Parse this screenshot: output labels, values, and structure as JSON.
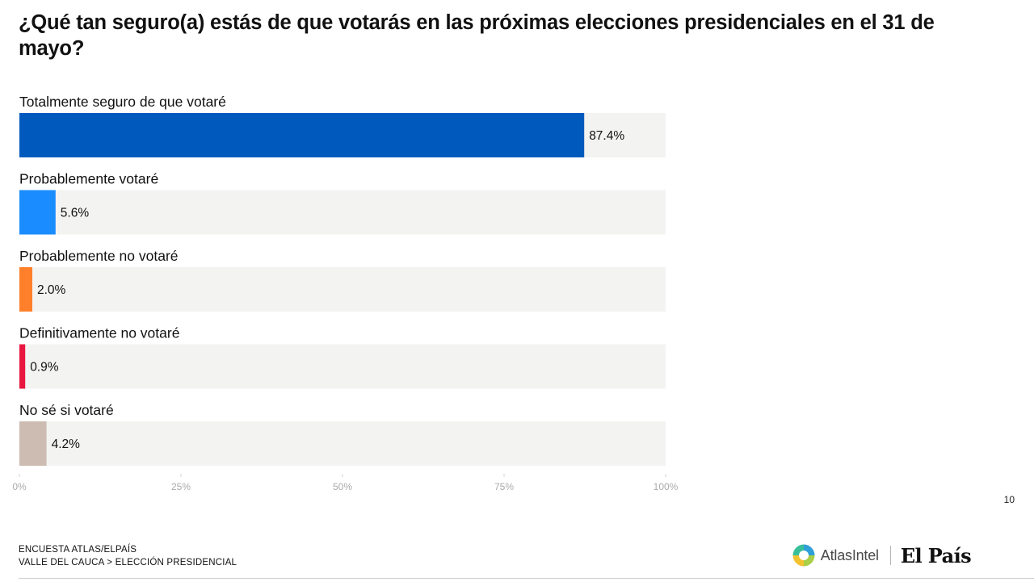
{
  "title": "¿Qué tan seguro(a) estás de que votarás en las próximas elecciones presidenciales en el 31 de mayo?",
  "chart_data": {
    "type": "bar",
    "orientation": "horizontal",
    "categories": [
      "Totalmente seguro de que votaré",
      "Probablemente votaré",
      "Probablemente no votaré",
      "Definitivamente no votaré",
      "No sé si votaré"
    ],
    "values": [
      87.4,
      5.6,
      2.0,
      0.9,
      4.2
    ],
    "value_labels": [
      "87.4%",
      "5.6%",
      "2.0%",
      "0.9%",
      "4.2%"
    ],
    "colors": [
      "#005abe",
      "#1a8cff",
      "#ff7f2a",
      "#e8173f",
      "#cdbcb2"
    ],
    "track_color": "#f3f3f1",
    "xlim": [
      0,
      100
    ],
    "x_ticks": [
      0,
      25,
      50,
      75,
      100
    ],
    "x_tick_labels": [
      "0%",
      "25%",
      "50%",
      "75%",
      "100%"
    ],
    "grid": false
  },
  "page_number": "10",
  "footer": {
    "line1": "ENCUESTA ATLAS/ELPAÍS",
    "line2": "VALLE DEL CAUCA > ELECCIÓN PRESIDENCIAL"
  },
  "logos": {
    "atlas": "AtlasIntel",
    "elpais": "El País"
  }
}
